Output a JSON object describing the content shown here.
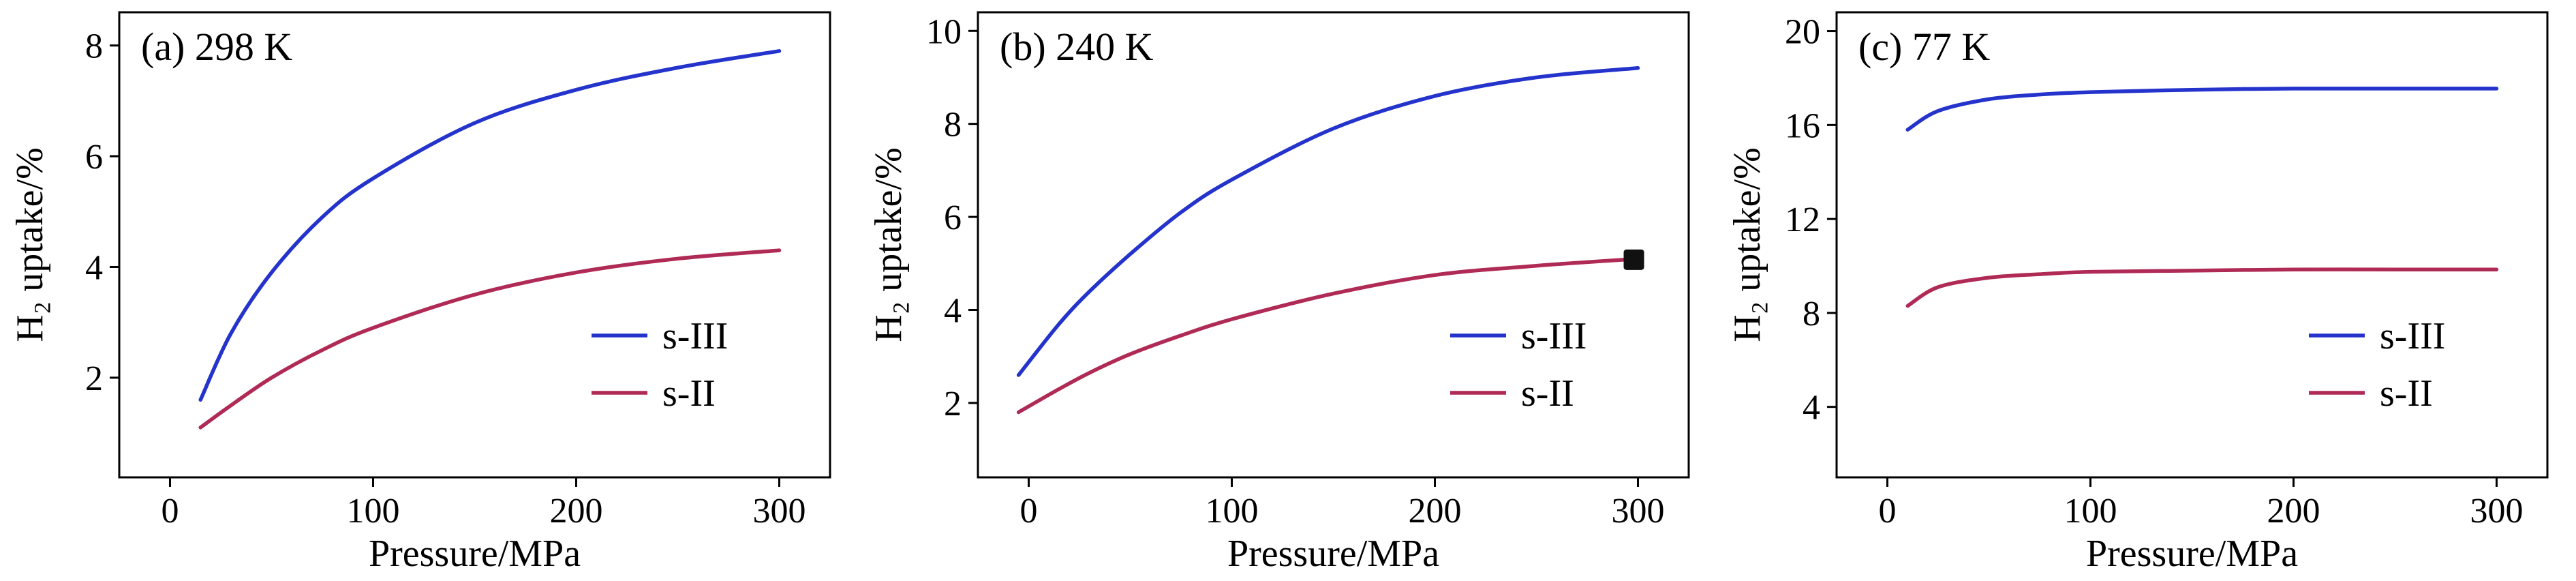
{
  "style": {
    "background": "#ffffff",
    "axis_color": "#000000",
    "s3_color": "#2433cb",
    "s2_color": "#b02a56",
    "marker_color": "#111111"
  },
  "chart_data": [
    {
      "type": "line",
      "panel_label": "(a) 298 K",
      "xlabel": "Pressure/MPa",
      "ylabel": "H₂ uptake/%",
      "xlim": [
        -25,
        325
      ],
      "ylim": [
        0.2,
        8.6
      ],
      "xticks": [
        0,
        100,
        200,
        300
      ],
      "yticks": [
        2,
        4,
        6,
        8
      ],
      "grid": false,
      "legend_position": "bottom-right",
      "series": [
        {
          "name": "s-III",
          "color": "#2433cb",
          "x": [
            15,
            30,
            50,
            75,
            100,
            150,
            200,
            250,
            300
          ],
          "y": [
            1.6,
            2.8,
            3.9,
            4.9,
            5.6,
            6.6,
            7.2,
            7.6,
            7.9
          ]
        },
        {
          "name": "s-II",
          "color": "#b02a56",
          "x": [
            15,
            30,
            50,
            75,
            100,
            150,
            200,
            250,
            300
          ],
          "y": [
            1.1,
            1.5,
            2.0,
            2.5,
            2.9,
            3.5,
            3.9,
            4.15,
            4.3
          ]
        }
      ]
    },
    {
      "type": "line",
      "panel_label": "(b) 240 K",
      "xlabel": "Pressure/MPa",
      "ylabel": "H₂ uptake/%",
      "xlim": [
        -25,
        325
      ],
      "ylim": [
        0.4,
        10.4
      ],
      "xticks": [
        0,
        100,
        200,
        300
      ],
      "yticks": [
        2,
        4,
        6,
        8,
        10
      ],
      "grid": false,
      "legend_position": "bottom-right",
      "series": [
        {
          "name": "s-III",
          "color": "#2433cb",
          "x": [
            -5,
            15,
            30,
            50,
            75,
            100,
            150,
            200,
            250,
            300
          ],
          "y": [
            2.6,
            3.7,
            4.4,
            5.2,
            6.1,
            6.8,
            7.9,
            8.6,
            9.0,
            9.2
          ]
        },
        {
          "name": "s-II",
          "color": "#b02a56",
          "x": [
            -5,
            15,
            30,
            50,
            75,
            100,
            150,
            200,
            250,
            300
          ],
          "y": [
            1.8,
            2.3,
            2.65,
            3.05,
            3.45,
            3.8,
            4.35,
            4.75,
            4.95,
            5.1
          ],
          "end_marker": {
            "shape": "square",
            "x": 298,
            "y": 5.08,
            "color": "#111111"
          }
        }
      ]
    },
    {
      "type": "line",
      "panel_label": "(c) 77 K",
      "xlabel": "Pressure/MPa",
      "ylabel": "H₂ uptake/%",
      "xlim": [
        -25,
        325
      ],
      "ylim": [
        1,
        20.8
      ],
      "xticks": [
        0,
        100,
        200,
        300
      ],
      "yticks": [
        4,
        8,
        12,
        16,
        20
      ],
      "grid": false,
      "legend_position": "bottom-right",
      "series": [
        {
          "name": "s-III",
          "color": "#2433cb",
          "x": [
            10,
            25,
            50,
            75,
            100,
            150,
            200,
            250,
            300
          ],
          "y": [
            15.8,
            16.6,
            17.1,
            17.3,
            17.4,
            17.5,
            17.55,
            17.55,
            17.55
          ]
        },
        {
          "name": "s-II",
          "color": "#b02a56",
          "x": [
            10,
            25,
            50,
            75,
            100,
            150,
            200,
            250,
            300
          ],
          "y": [
            8.3,
            9.1,
            9.5,
            9.65,
            9.75,
            9.8,
            9.85,
            9.85,
            9.85
          ]
        }
      ]
    }
  ]
}
